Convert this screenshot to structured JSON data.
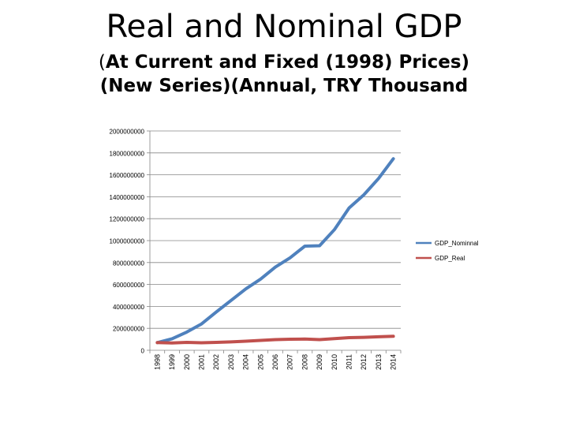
{
  "page": {
    "title": "Real and Nominal GDP",
    "subtitle_prefix": "(",
    "subtitle_main": "At Current and Fixed (1998) Prices) (New Series)(Annual, TRY Thousand"
  },
  "chart_data": {
    "type": "line",
    "title": "",
    "xlabel": "",
    "ylabel": "",
    "ylim": [
      0,
      2000000000
    ],
    "yticks": [
      0,
      200000000,
      400000000,
      600000000,
      800000000,
      1000000000,
      1200000000,
      1400000000,
      1600000000,
      1800000000,
      2000000000
    ],
    "grid": true,
    "legend": "right",
    "x": [
      "1998",
      "1999",
      "2000",
      "2001",
      "2002",
      "2003",
      "2004",
      "2005",
      "2006",
      "2007",
      "2008",
      "2009",
      "2010",
      "2011",
      "2012",
      "2013",
      "2014"
    ],
    "series": [
      {
        "name": "GDP_Nominnal",
        "color": "#4f81bd",
        "values": [
          70000000,
          105000000,
          166000000,
          240000000,
          350000000,
          455000000,
          560000000,
          649000000,
          758000000,
          843000000,
          950000000,
          953000000,
          1099000000,
          1298000000,
          1417000000,
          1567000000,
          1747000000
        ]
      },
      {
        "name": "GDP_Real",
        "color": "#c0504d",
        "values": [
          70000000,
          67000000,
          72000000,
          68000000,
          72000000,
          76000000,
          83000000,
          90000000,
          97000000,
          101000000,
          102000000,
          97000000,
          106000000,
          115000000,
          118000000,
          123000000,
          127000000
        ]
      }
    ]
  }
}
